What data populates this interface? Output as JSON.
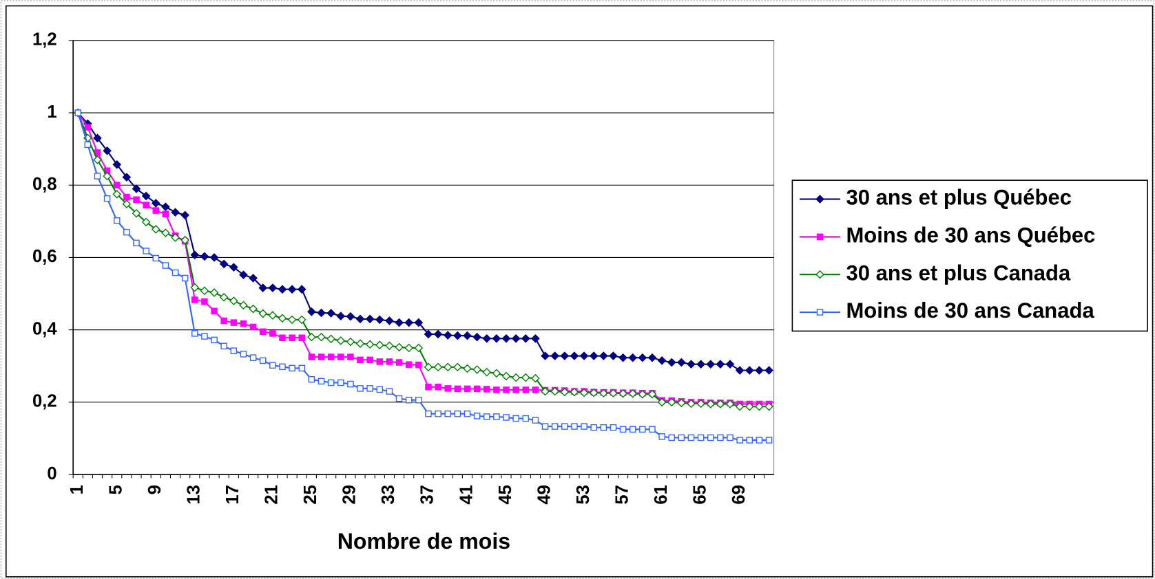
{
  "chart_data": {
    "type": "line",
    "x_label": "Nombre de mois",
    "categories": [
      1,
      null,
      null,
      null,
      5,
      null,
      null,
      null,
      9,
      null,
      null,
      null,
      13,
      null,
      null,
      null,
      17,
      null,
      null,
      null,
      21,
      null,
      null,
      null,
      25,
      null,
      null,
      null,
      29,
      null,
      null,
      null,
      33,
      null,
      null,
      null,
      37,
      null,
      null,
      null,
      41,
      null,
      null,
      null,
      45,
      null,
      null,
      null,
      49,
      null,
      null,
      null,
      53,
      null,
      null,
      null,
      57,
      null,
      null,
      null,
      61,
      null,
      null,
      null,
      65,
      null,
      null,
      null,
      69,
      null,
      null,
      null
    ],
    "ylim": [
      0,
      1.2
    ],
    "yticks": [
      0,
      {
        "value": 0.2,
        "label": "0,2"
      },
      {
        "value": 0.4,
        "label": "0,4"
      },
      {
        "value": 0.6,
        "label": "0,6"
      },
      {
        "value": 0.8,
        "label": "0,8"
      },
      1,
      {
        "value": 1.2,
        "label": "1,2"
      }
    ],
    "grid": true,
    "legend": "right",
    "series": [
      {
        "name": "30 ans et plus Québec",
        "color": "#000080",
        "marker": "diamond-filled",
        "values": [
          1,
          0.97,
          0.93,
          0.895,
          0.857,
          0.822,
          0.79,
          0.77,
          0.75,
          0.74,
          0.725,
          0.717,
          0.607,
          0.603,
          0.6,
          0.582,
          0.573,
          0.552,
          0.543,
          0.516,
          0.516,
          0.512,
          0.512,
          0.512,
          0.45,
          0.447,
          0.446,
          0.438,
          0.437,
          0.43,
          0.43,
          0.428,
          0.425,
          0.42,
          0.42,
          0.42,
          0.388,
          0.388,
          0.385,
          0.384,
          0.384,
          0.38,
          0.376,
          0.376,
          0.376,
          0.376,
          0.376,
          0.376,
          0.328,
          0.328,
          0.328,
          0.328,
          0.328,
          0.328,
          0.328,
          0.328,
          0.323,
          0.323,
          0.323,
          0.323,
          0.315,
          0.31,
          0.31,
          0.305,
          0.305,
          0.305,
          0.305,
          0.305,
          0.288,
          0.288,
          0.288,
          0.288
        ]
      },
      {
        "name": "Moins de 30 ans Québec",
        "color": "#ff00ff",
        "marker": "square-filled",
        "values": [
          1,
          0.96,
          0.89,
          0.84,
          0.8,
          0.767,
          0.76,
          0.745,
          0.73,
          0.72,
          0.66,
          0.645,
          0.483,
          0.478,
          0.452,
          0.425,
          0.42,
          0.417,
          0.408,
          0.395,
          0.39,
          0.378,
          0.378,
          0.378,
          0.325,
          0.325,
          0.325,
          0.325,
          0.325,
          0.317,
          0.317,
          0.312,
          0.312,
          0.31,
          0.304,
          0.303,
          0.242,
          0.242,
          0.238,
          0.237,
          0.237,
          0.237,
          0.236,
          0.234,
          0.234,
          0.234,
          0.234,
          0.234,
          0.233,
          0.233,
          0.232,
          0.23,
          0.23,
          0.228,
          0.227,
          0.227,
          0.226,
          0.226,
          0.225,
          0.225,
          0.205,
          0.204,
          0.202,
          0.2,
          0.2,
          0.198,
          0.198,
          0.198,
          0.195,
          0.195,
          0.195,
          0.195
        ]
      },
      {
        "name": "30 ans et plus Canada",
        "color": "#008000",
        "marker": "diamond-open",
        "values": [
          1,
          0.93,
          0.87,
          0.825,
          0.775,
          0.748,
          0.722,
          0.698,
          0.678,
          0.668,
          0.655,
          0.648,
          0.517,
          0.508,
          0.503,
          0.49,
          0.48,
          0.468,
          0.458,
          0.445,
          0.44,
          0.432,
          0.428,
          0.428,
          0.38,
          0.38,
          0.375,
          0.37,
          0.367,
          0.362,
          0.36,
          0.358,
          0.356,
          0.352,
          0.35,
          0.35,
          0.297,
          0.297,
          0.297,
          0.297,
          0.293,
          0.29,
          0.283,
          0.28,
          0.272,
          0.268,
          0.268,
          0.266,
          0.23,
          0.23,
          0.228,
          0.228,
          0.226,
          0.226,
          0.225,
          0.225,
          0.224,
          0.224,
          0.222,
          0.222,
          0.2,
          0.2,
          0.198,
          0.196,
          0.196,
          0.195,
          0.195,
          0.195,
          0.188,
          0.188,
          0.188,
          0.188
        ]
      },
      {
        "name": "Moins de 30 ans Canada",
        "color": "#3366ff",
        "marker": "square-open",
        "values": [
          1,
          0.912,
          0.825,
          0.763,
          0.702,
          0.67,
          0.64,
          0.618,
          0.598,
          0.578,
          0.558,
          0.543,
          0.39,
          0.382,
          0.372,
          0.355,
          0.342,
          0.333,
          0.323,
          0.315,
          0.302,
          0.298,
          0.294,
          0.294,
          0.263,
          0.258,
          0.254,
          0.254,
          0.25,
          0.238,
          0.238,
          0.235,
          0.23,
          0.21,
          0.206,
          0.206,
          0.168,
          0.168,
          0.168,
          0.168,
          0.168,
          0.162,
          0.16,
          0.16,
          0.158,
          0.155,
          0.155,
          0.15,
          0.133,
          0.133,
          0.133,
          0.133,
          0.133,
          0.13,
          0.13,
          0.13,
          0.125,
          0.125,
          0.125,
          0.125,
          0.105,
          0.102,
          0.102,
          0.102,
          0.102,
          0.102,
          0.102,
          0.102,
          0.095,
          0.095,
          0.095,
          0.095
        ]
      }
    ]
  }
}
